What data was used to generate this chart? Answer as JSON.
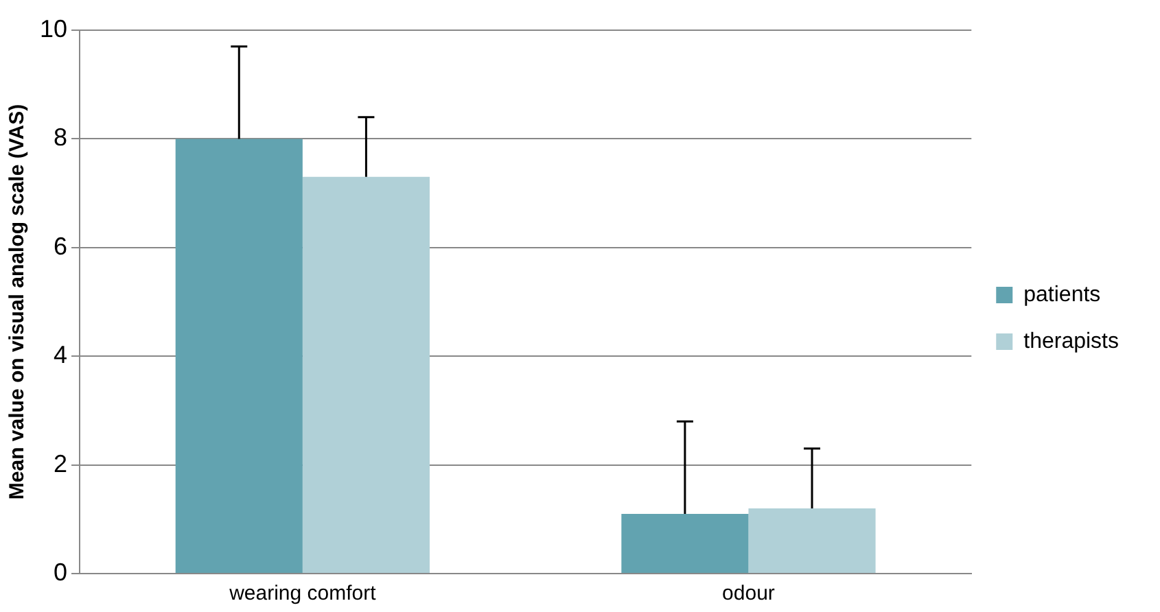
{
  "chart_data": {
    "type": "bar",
    "ylabel": "Mean value on visual analog scale (VAS)",
    "categories": [
      "wearing comfort",
      "odour"
    ],
    "series": [
      {
        "name": "patients",
        "color": "#62a3b0",
        "values": [
          8.0,
          1.1
        ],
        "errors": [
          [
            8.0,
            9.7
          ],
          [
            1.1,
            2.8
          ]
        ]
      },
      {
        "name": "therapists",
        "color": "#b0d0d7",
        "values": [
          7.3,
          1.2
        ],
        "errors": [
          [
            7.3,
            8.4
          ],
          [
            1.2,
            2.3
          ]
        ]
      }
    ],
    "ylim": [
      0,
      10
    ],
    "yticks": [
      0,
      2,
      4,
      6,
      8,
      10
    ],
    "grid": "y",
    "legend": "right"
  }
}
